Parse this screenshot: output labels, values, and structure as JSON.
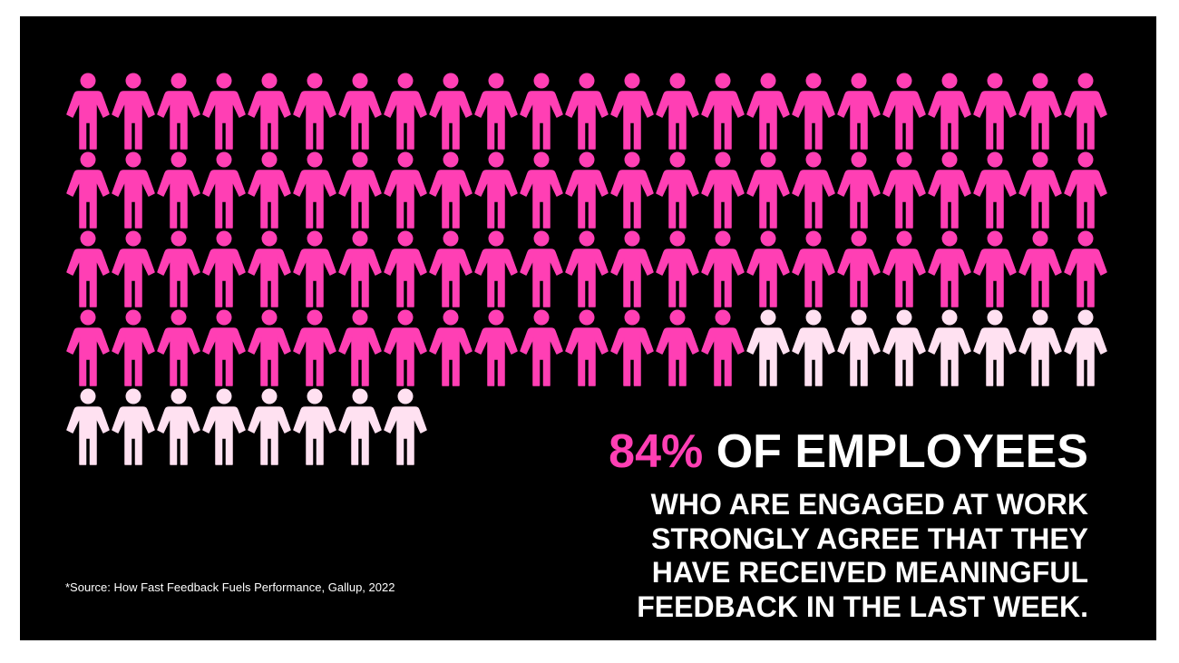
{
  "chart_data": {
    "type": "pictogram",
    "values": [
      84,
      16
    ],
    "value_labels": [
      "84%",
      null
    ],
    "colors": [
      "#ff3fb4",
      "#ffe1f1"
    ],
    "headline": "OF EMPLOYEES",
    "text": [
      "WHO ARE ENGAGED AT WORK",
      "STRONGLY AGREE THAT THEY",
      "HAVE RECEIVED MEANINGFUL",
      "FEEDBACK IN THE LAST WEEK."
    ],
    "source": "*Source: How Fast Feedback Fuels Performance, Gallup, 2022"
  }
}
